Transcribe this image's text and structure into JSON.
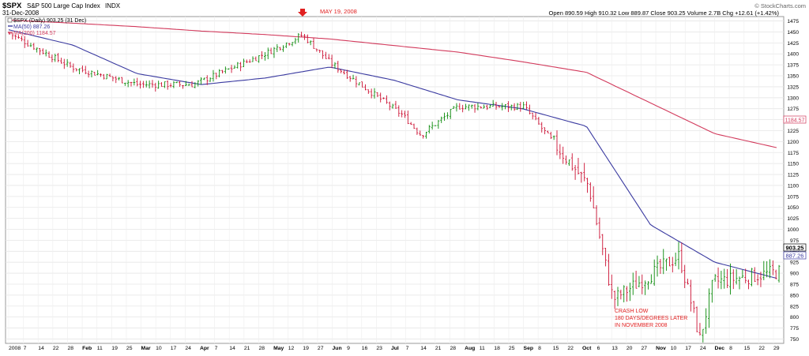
{
  "header": {
    "symbol": "$SPX",
    "name": "S&P 500 Large Cap Index",
    "exchange": "INDX",
    "date": "31-Dec-2008",
    "watermark": "© StockCharts.com",
    "stats": "Open 890.59  High 910.32  Low 889.87  Close 903.25  Volume 2.7B  Chg +12.61 (+1.42%)"
  },
  "legend": {
    "price": "$SPX (Daily) 903.25 (31 Dec)",
    "ma50": "MA(50) 887.26",
    "ma200": "MA(200) 1184.57"
  },
  "annotations": {
    "top": "MAY 19, 2008",
    "crash": [
      "CRASH LOW",
      "180 DAYS/DEGREES LATER",
      "IN NOVEMBER 2008"
    ]
  },
  "colors": {
    "up": "#0a8a0a",
    "down": "#cc1133",
    "ma50": "#3a3aa0",
    "ma200": "#d23a5c",
    "annotation": "#e02020"
  },
  "chart_data": {
    "type": "line",
    "title": "$SPX S&P 500 Large Cap Index INDX",
    "ylim": [
      740,
      1485
    ],
    "y_ticks": [
      750,
      775,
      800,
      825,
      850,
      875,
      900,
      925,
      950,
      975,
      1000,
      1025,
      1050,
      1075,
      1100,
      1125,
      1150,
      1175,
      1200,
      1225,
      1250,
      1275,
      1300,
      1325,
      1350,
      1375,
      1400,
      1425,
      1450,
      1475
    ],
    "x_ticks": [
      "2008",
      "7",
      "14",
      "22",
      "28",
      "Feb",
      "11",
      "19",
      "25",
      "Mar",
      "10",
      "17",
      "24",
      "Apr",
      "7",
      "14",
      "21",
      "28",
      "May",
      "12",
      "19",
      "27",
      "Jun",
      "9",
      "16",
      "23",
      "Jul",
      "7",
      "14",
      "21",
      "28",
      "Aug",
      "11",
      "18",
      "25",
      "Sep",
      "8",
      "15",
      "22",
      "Oct",
      "6",
      "13",
      "20",
      "27",
      "Nov",
      "10",
      "17",
      "24",
      "Dec",
      "8",
      "15",
      "22",
      "29"
    ],
    "price_tags": [
      "903.25",
      "887.26",
      "1184.57"
    ],
    "series": [
      {
        "name": "$SPX (Daily)",
        "x": [
          "Jan",
          "Feb",
          "Mar",
          "Apr",
          "May",
          "May 19",
          "Jun",
          "Jul",
          "Jul 15",
          "Aug",
          "Sep",
          "Oct",
          "Oct 10",
          "Nov",
          "Nov 20",
          "Dec",
          "Dec 31"
        ],
        "values": [
          1447,
          1370,
          1330,
          1330,
          1400,
          1443,
          1380,
          1260,
          1215,
          1280,
          1280,
          1100,
          840,
          940,
          750,
          880,
          903
        ]
      },
      {
        "name": "MA(50)",
        "x": [
          "Jan",
          "Feb",
          "Mar",
          "Apr",
          "May",
          "Jun",
          "Jul",
          "Aug",
          "Sep",
          "Oct",
          "Nov",
          "Dec",
          "Dec 31"
        ],
        "values": [
          1455,
          1420,
          1355,
          1330,
          1345,
          1370,
          1340,
          1295,
          1275,
          1235,
          1010,
          925,
          887
        ]
      },
      {
        "name": "MA(200)",
        "x": [
          "Jan",
          "Feb",
          "Mar",
          "Apr",
          "May",
          "Jun",
          "Jul",
          "Aug",
          "Sep",
          "Oct",
          "Nov",
          "Dec",
          "Dec 31"
        ],
        "values": [
          1477,
          1470,
          1462,
          1452,
          1444,
          1434,
          1419,
          1404,
          1382,
          1358,
          1288,
          1218,
          1185
        ]
      }
    ]
  }
}
